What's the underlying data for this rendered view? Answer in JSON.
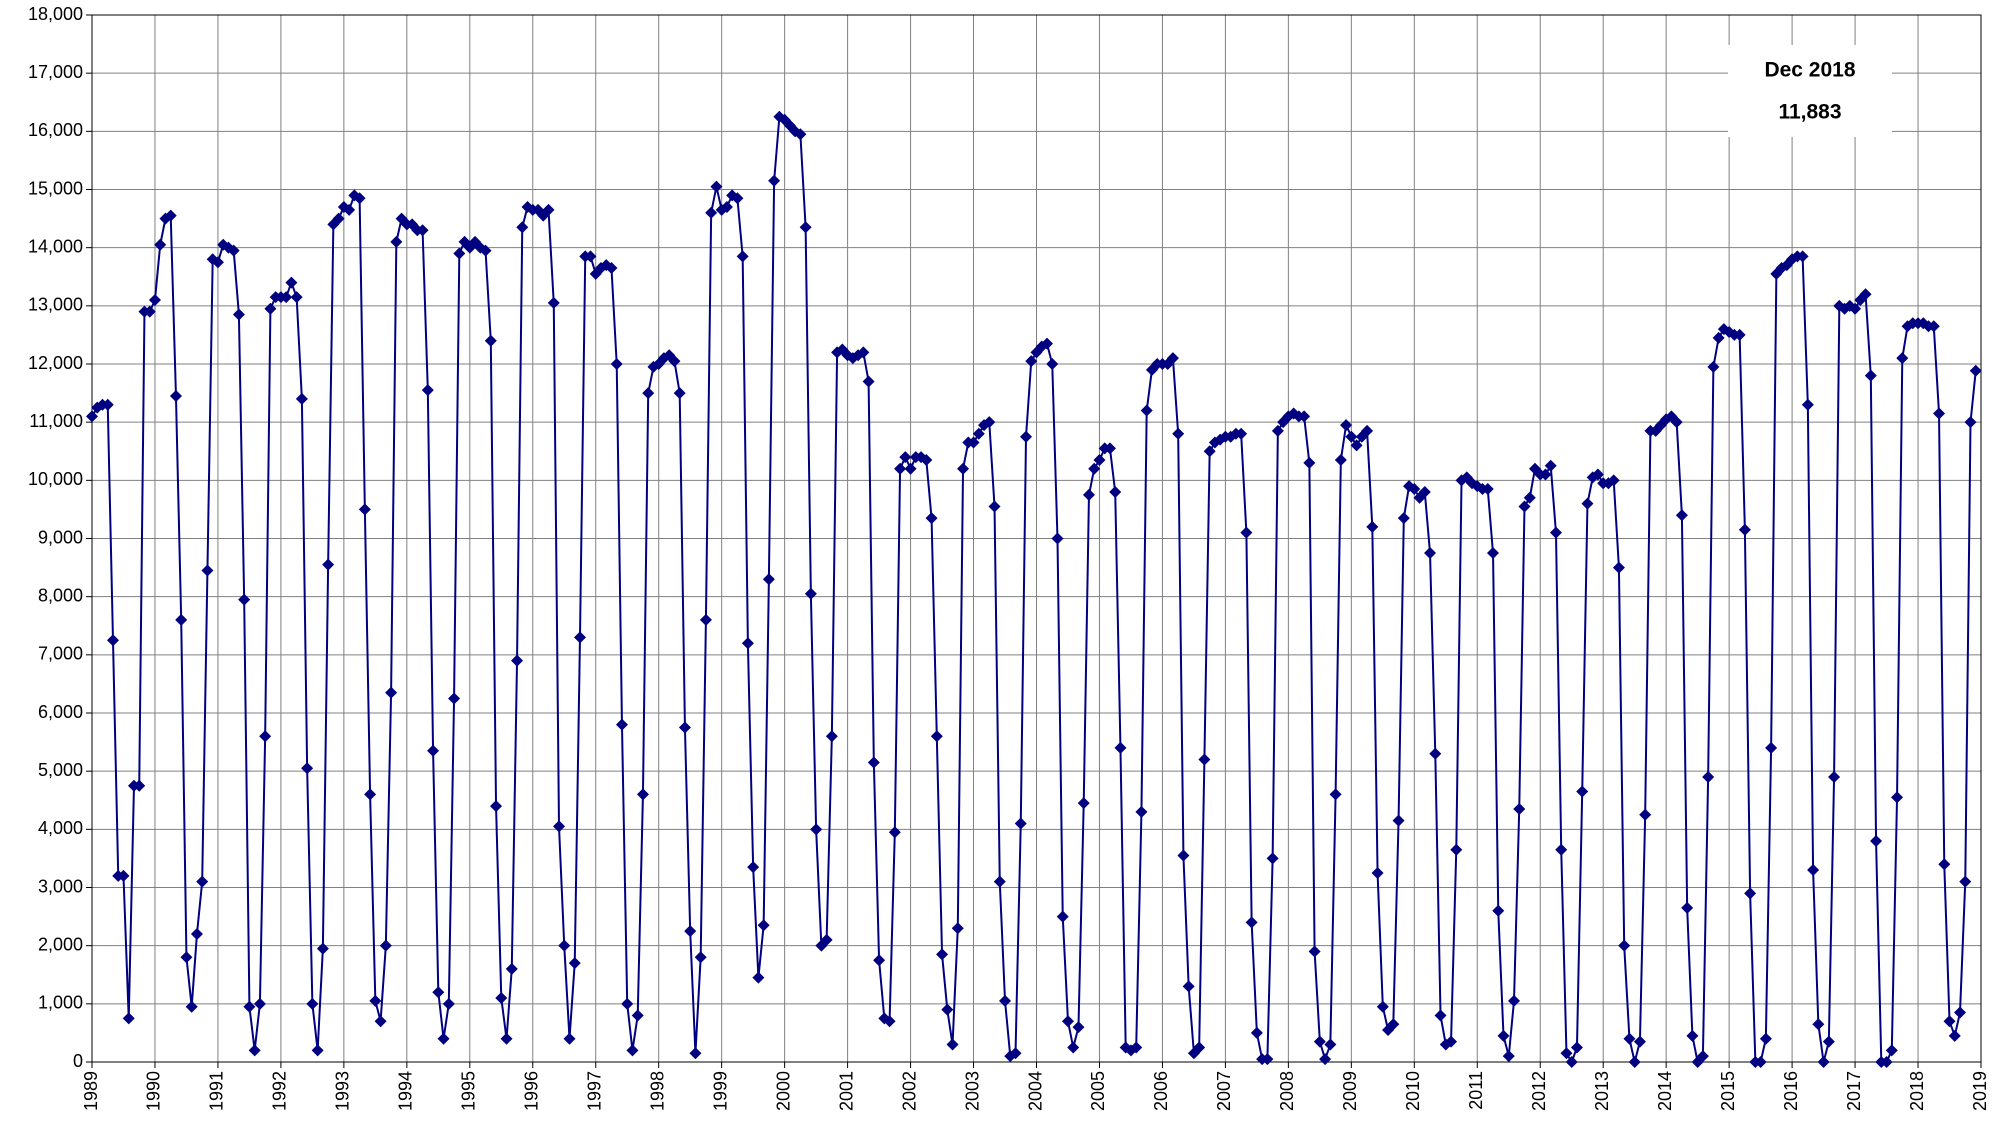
{
  "chart_data": {
    "type": "line",
    "color": "#000080",
    "grid": true,
    "marker": "diamond",
    "annotation": {
      "label": "Dec 2018",
      "value_label": "11,883"
    },
    "xlim": [
      1989,
      2019
    ],
    "xticks": [
      1989,
      1990,
      1991,
      1992,
      1993,
      1994,
      1995,
      1996,
      1997,
      1998,
      1999,
      2000,
      2001,
      2002,
      2003,
      2004,
      2005,
      2006,
      2007,
      2008,
      2009,
      2010,
      2011,
      2012,
      2013,
      2014,
      2015,
      2016,
      2017,
      2018,
      2019
    ],
    "ylim": [
      0,
      18000
    ],
    "yticks": [
      0,
      {
        "value": 1000,
        "label": "1,000"
      },
      {
        "value": 2000,
        "label": "2,000"
      },
      {
        "value": 3000,
        "label": "3,000"
      },
      {
        "value": 4000,
        "label": "4,000"
      },
      {
        "value": 5000,
        "label": "5,000"
      },
      {
        "value": 6000,
        "label": "6,000"
      },
      {
        "value": 7000,
        "label": "7,000"
      },
      {
        "value": 8000,
        "label": "8,000"
      },
      {
        "value": 9000,
        "label": "9,000"
      },
      {
        "value": 10000,
        "label": "10,000"
      },
      {
        "value": 11000,
        "label": "11,000"
      },
      {
        "value": 12000,
        "label": "12,000"
      },
      {
        "value": 13000,
        "label": "13,000"
      },
      {
        "value": 14000,
        "label": "14,000"
      },
      {
        "value": 15000,
        "label": "15,000"
      },
      {
        "value": 16000,
        "label": "16,000"
      },
      {
        "value": 17000,
        "label": "17,000"
      },
      {
        "value": 18000,
        "label": "18,000"
      }
    ],
    "x": [
      "1989-01",
      "1989-02",
      "1989-03",
      "1989-04",
      "1989-05",
      "1989-06",
      "1989-07",
      "1989-08",
      "1989-09",
      "1989-10",
      "1989-11",
      "1989-12",
      "1990-01",
      "1990-02",
      "1990-03",
      "1990-04",
      "1990-05",
      "1990-06",
      "1990-07",
      "1990-08",
      "1990-09",
      "1990-10",
      "1990-11",
      "1990-12",
      "1991-01",
      "1991-02",
      "1991-03",
      "1991-04",
      "1991-05",
      "1991-06",
      "1991-07",
      "1991-08",
      "1991-09",
      "1991-10",
      "1991-11",
      "1991-12",
      "1992-01",
      "1992-02",
      "1992-03",
      "1992-04",
      "1992-05",
      "1992-06",
      "1992-07",
      "1992-08",
      "1992-09",
      "1992-10",
      "1992-11",
      "1992-12",
      "1993-01",
      "1993-02",
      "1993-03",
      "1993-04",
      "1993-05",
      "1993-06",
      "1993-07",
      "1993-08",
      "1993-09",
      "1993-10",
      "1993-11",
      "1993-12",
      "1994-01",
      "1994-02",
      "1994-03",
      "1994-04",
      "1994-05",
      "1994-06",
      "1994-07",
      "1994-08",
      "1994-09",
      "1994-10",
      "1994-11",
      "1994-12",
      "1995-01",
      "1995-02",
      "1995-03",
      "1995-04",
      "1995-05",
      "1995-06",
      "1995-07",
      "1995-08",
      "1995-09",
      "1995-10",
      "1995-11",
      "1995-12",
      "1996-01",
      "1996-02",
      "1996-03",
      "1996-04",
      "1996-05",
      "1996-06",
      "1996-07",
      "1996-08",
      "1996-09",
      "1996-10",
      "1996-11",
      "1996-12",
      "1997-01",
      "1997-02",
      "1997-03",
      "1997-04",
      "1997-05",
      "1997-06",
      "1997-07",
      "1997-08",
      "1997-09",
      "1997-10",
      "1997-11",
      "1997-12",
      "1998-01",
      "1998-02",
      "1998-03",
      "1998-04",
      "1998-05",
      "1998-06",
      "1998-07",
      "1998-08",
      "1998-09",
      "1998-10",
      "1998-11",
      "1998-12",
      "1999-01",
      "1999-02",
      "1999-03",
      "1999-04",
      "1999-05",
      "1999-06",
      "1999-07",
      "1999-08",
      "1999-09",
      "1999-10",
      "1999-11",
      "1999-12",
      "2000-01",
      "2000-02",
      "2000-03",
      "2000-04",
      "2000-05",
      "2000-06",
      "2000-07",
      "2000-08",
      "2000-09",
      "2000-10",
      "2000-11",
      "2000-12",
      "2001-01",
      "2001-02",
      "2001-03",
      "2001-04",
      "2001-05",
      "2001-06",
      "2001-07",
      "2001-08",
      "2001-09",
      "2001-10",
      "2001-11",
      "2001-12",
      "2002-01",
      "2002-02",
      "2002-03",
      "2002-04",
      "2002-05",
      "2002-06",
      "2002-07",
      "2002-08",
      "2002-09",
      "2002-10",
      "2002-11",
      "2002-12",
      "2003-01",
      "2003-02",
      "2003-03",
      "2003-04",
      "2003-05",
      "2003-06",
      "2003-07",
      "2003-08",
      "2003-09",
      "2003-10",
      "2003-11",
      "2003-12",
      "2004-01",
      "2004-02",
      "2004-03",
      "2004-04",
      "2004-05",
      "2004-06",
      "2004-07",
      "2004-08",
      "2004-09",
      "2004-10",
      "2004-11",
      "2004-12",
      "2005-01",
      "2005-02",
      "2005-03",
      "2005-04",
      "2005-05",
      "2005-06",
      "2005-07",
      "2005-08",
      "2005-09",
      "2005-10",
      "2005-11",
      "2005-12",
      "2006-01",
      "2006-02",
      "2006-03",
      "2006-04",
      "2006-05",
      "2006-06",
      "2006-07",
      "2006-08",
      "2006-09",
      "2006-10",
      "2006-11",
      "2006-12",
      "2007-01",
      "2007-02",
      "2007-03",
      "2007-04",
      "2007-05",
      "2007-06",
      "2007-07",
      "2007-08",
      "2007-09",
      "2007-10",
      "2007-11",
      "2007-12",
      "2008-01",
      "2008-02",
      "2008-03",
      "2008-04",
      "2008-05",
      "2008-06",
      "2008-07",
      "2008-08",
      "2008-09",
      "2008-10",
      "2008-11",
      "2008-12",
      "2009-01",
      "2009-02",
      "2009-03",
      "2009-04",
      "2009-05",
      "2009-06",
      "2009-07",
      "2009-08",
      "2009-09",
      "2009-10",
      "2009-11",
      "2009-12",
      "2010-01",
      "2010-02",
      "2010-03",
      "2010-04",
      "2010-05",
      "2010-06",
      "2010-07",
      "2010-08",
      "2010-09",
      "2010-10",
      "2010-11",
      "2010-12",
      "2011-01",
      "2011-02",
      "2011-03",
      "2011-04",
      "2011-05",
      "2011-06",
      "2011-07",
      "2011-08",
      "2011-09",
      "2011-10",
      "2011-11",
      "2011-12",
      "2012-01",
      "2012-02",
      "2012-03",
      "2012-04",
      "2012-05",
      "2012-06",
      "2012-07",
      "2012-08",
      "2012-09",
      "2012-10",
      "2012-11",
      "2012-12",
      "2013-01",
      "2013-02",
      "2013-03",
      "2013-04",
      "2013-05",
      "2013-06",
      "2013-07",
      "2013-08",
      "2013-09",
      "2013-10",
      "2013-11",
      "2013-12",
      "2014-01",
      "2014-02",
      "2014-03",
      "2014-04",
      "2014-05",
      "2014-06",
      "2014-07",
      "2014-08",
      "2014-09",
      "2014-10",
      "2014-11",
      "2014-12",
      "2015-01",
      "2015-02",
      "2015-03",
      "2015-04",
      "2015-05",
      "2015-06",
      "2015-07",
      "2015-08",
      "2015-09",
      "2015-10",
      "2015-11",
      "2015-12",
      "2016-01",
      "2016-02",
      "2016-03",
      "2016-04",
      "2016-05",
      "2016-06",
      "2016-07",
      "2016-08",
      "2016-09",
      "2016-10",
      "2016-11",
      "2016-12",
      "2017-01",
      "2017-02",
      "2017-03",
      "2017-04",
      "2017-05",
      "2017-06",
      "2017-07",
      "2017-08",
      "2017-09",
      "2017-10",
      "2017-11",
      "2017-12",
      "2018-01",
      "2018-02",
      "2018-03",
      "2018-04",
      "2018-05",
      "2018-06",
      "2018-07",
      "2018-08",
      "2018-09",
      "2018-10",
      "2018-11",
      "2018-12"
    ],
    "values": [
      11100,
      11250,
      11300,
      11300,
      7250,
      3200,
      3200,
      750,
      4750,
      4750,
      12900,
      12900,
      13100,
      14050,
      14500,
      14550,
      11450,
      7600,
      1800,
      950,
      2200,
      3100,
      8450,
      13800,
      13750,
      14050,
      14000,
      13950,
      12850,
      7950,
      950,
      200,
      1000,
      5600,
      12950,
      13150,
      13150,
      13150,
      13400,
      13150,
      11400,
      5050,
      1000,
      200,
      1950,
      8550,
      14400,
      14500,
      14700,
      14650,
      14900,
      14850,
      9500,
      4600,
      1050,
      700,
      2000,
      6350,
      14100,
      14500,
      14400,
      14400,
      14300,
      14300,
      11550,
      5350,
      1200,
      400,
      1000,
      6250,
      13900,
      14100,
      14000,
      14100,
      14000,
      13950,
      12400,
      4400,
      1100,
      400,
      1600,
      6900,
      14350,
      14700,
      14650,
      14650,
      14550,
      14650,
      13050,
      4050,
      2000,
      400,
      1700,
      7300,
      13850,
      13850,
      13550,
      13650,
      13700,
      13650,
      12000,
      5800,
      1000,
      200,
      800,
      4600,
      11500,
      11950,
      12000,
      12100,
      12150,
      12050,
      11500,
      5750,
      2250,
      150,
      1800,
      7600,
      14600,
      15050,
      14650,
      14700,
      14900,
      14850,
      13850,
      7200,
      3350,
      1450,
      2350,
      8300,
      15150,
      16250,
      16200,
      16100,
      16000,
      15950,
      14350,
      8050,
      4000,
      2000,
      2100,
      5600,
      12200,
      12250,
      12150,
      12100,
      12150,
      12200,
      11700,
      5150,
      1750,
      750,
      700,
      3950,
      10200,
      10400,
      10200,
      10400,
      10400,
      10350,
      9350,
      5600,
      1850,
      900,
      300,
      2300,
      10200,
      10650,
      10650,
      10800,
      10950,
      11000,
      9550,
      3100,
      1050,
      100,
      150,
      4100,
      10750,
      12050,
      12200,
      12300,
      12350,
      12000,
      9000,
      2500,
      700,
      250,
      600,
      4450,
      9750,
      10200,
      10350,
      10550,
      10550,
      9800,
      5400,
      250,
      200,
      250,
      4300,
      11200,
      11900,
      12000,
      12000,
      12000,
      12100,
      10800,
      3550,
      1300,
      150,
      250,
      5200,
      10500,
      10650,
      10700,
      10750,
      10750,
      10800,
      10800,
      9100,
      2400,
      500,
      50,
      50,
      3500,
      10850,
      11000,
      11100,
      11150,
      11100,
      11100,
      10300,
      1900,
      350,
      50,
      300,
      4600,
      10350,
      10950,
      10750,
      10600,
      10750,
      10850,
      9200,
      3250,
      950,
      550,
      650,
      4150,
      9350,
      9900,
      9850,
      9700,
      9800,
      8750,
      5300,
      800,
      300,
      350,
      3650,
      10000,
      10050,
      9950,
      9900,
      9850,
      9850,
      8750,
      2600,
      450,
      100,
      1050,
      4350,
      9550,
      9700,
      10200,
      10100,
      10100,
      10250,
      9100,
      3650,
      150,
      0,
      250,
      4650,
      9600,
      10050,
      10100,
      9950,
      9950,
      10000,
      8500,
      2000,
      400,
      0,
      350,
      4250,
      10850,
      10850,
      10950,
      11050,
      11100,
      11000,
      9400,
      2650,
      450,
      0,
      100,
      4900,
      11950,
      12450,
      12600,
      12550,
      12500,
      12500,
      9150,
      2900,
      0,
      0,
      400,
      5400,
      13550,
      13650,
      13700,
      13800,
      13850,
      13850,
      11300,
      3300,
      650,
      0,
      350,
      4900,
      13000,
      12950,
      13000,
      12950,
      13100,
      13200,
      11800,
      3800,
      0,
      0,
      200,
      4550,
      12100,
      12650,
      12700,
      12700,
      12700,
      12650,
      12650,
      11150,
      3400,
      700,
      450,
      850,
      3100,
      11000,
      11883
    ]
  }
}
